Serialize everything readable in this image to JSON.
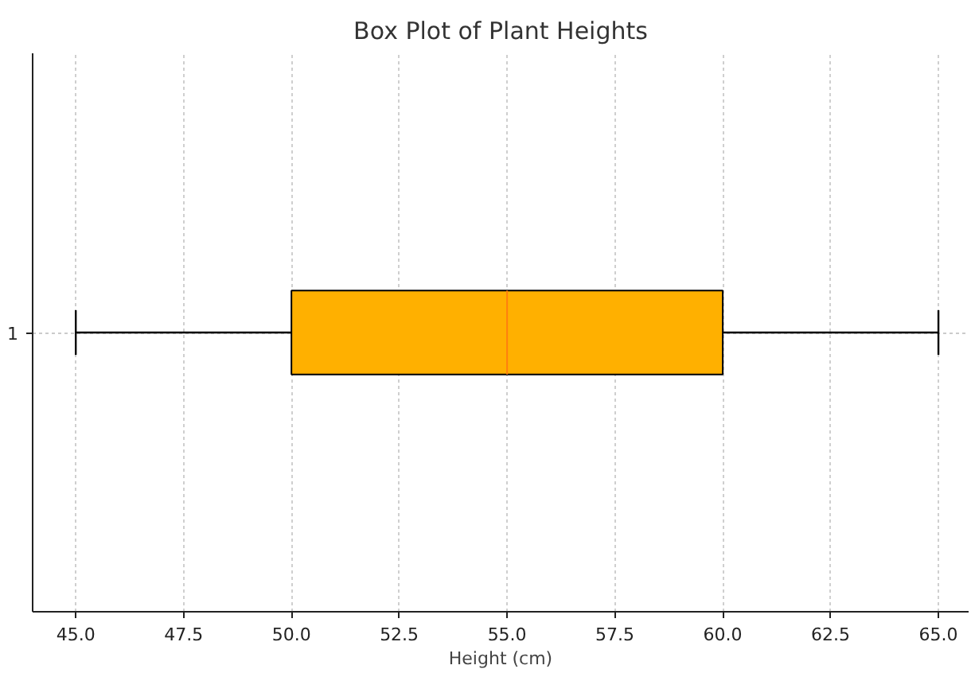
{
  "chart_data": {
    "type": "box",
    "title": "Box Plot of Plant Heights",
    "xlabel": "Height (cm)",
    "orientation": "horizontal",
    "categories": [
      "1"
    ],
    "series": [
      {
        "color": "#ffb000",
        "boxes": [
          {
            "low": 45,
            "q1": 50,
            "median": 55,
            "q3": 60,
            "high": 65
          }
        ]
      }
    ],
    "xlim": [
      44.0,
      65.7
    ],
    "xticks": [
      {
        "value": 45,
        "label": "45.0"
      },
      {
        "value": 47.5,
        "label": "47.5"
      },
      {
        "value": 50,
        "label": "50.0"
      },
      {
        "value": 52.5,
        "label": "52.5"
      },
      {
        "value": 55,
        "label": "55.0"
      },
      {
        "value": 57.5,
        "label": "57.5"
      },
      {
        "value": 60,
        "label": "60.0"
      },
      {
        "value": 62.5,
        "label": "62.5"
      },
      {
        "value": 65,
        "label": "65.0"
      }
    ],
    "grid": true
  }
}
